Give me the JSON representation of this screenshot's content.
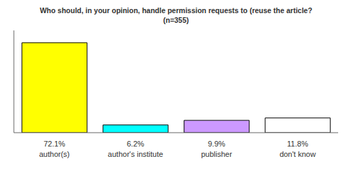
{
  "chart_data": {
    "type": "bar",
    "title": "Who should, in your opinion, handle permission requests to (reuse the article?",
    "subtitle": "(n=355)",
    "categories": [
      "author(s)",
      "author's institute",
      "publisher",
      "don't know"
    ],
    "values": [
      72.1,
      6.2,
      9.9,
      11.8
    ],
    "value_labels": [
      "72.1%",
      "6.2%",
      "9.9%",
      "11.8%"
    ],
    "data_labels": true,
    "colors": [
      "#ffff00",
      "#00ffff",
      "#cc99ff",
      "#ffffff"
    ],
    "ylim": [
      0,
      82
    ],
    "tick_labels": "x",
    "grid": false
  }
}
